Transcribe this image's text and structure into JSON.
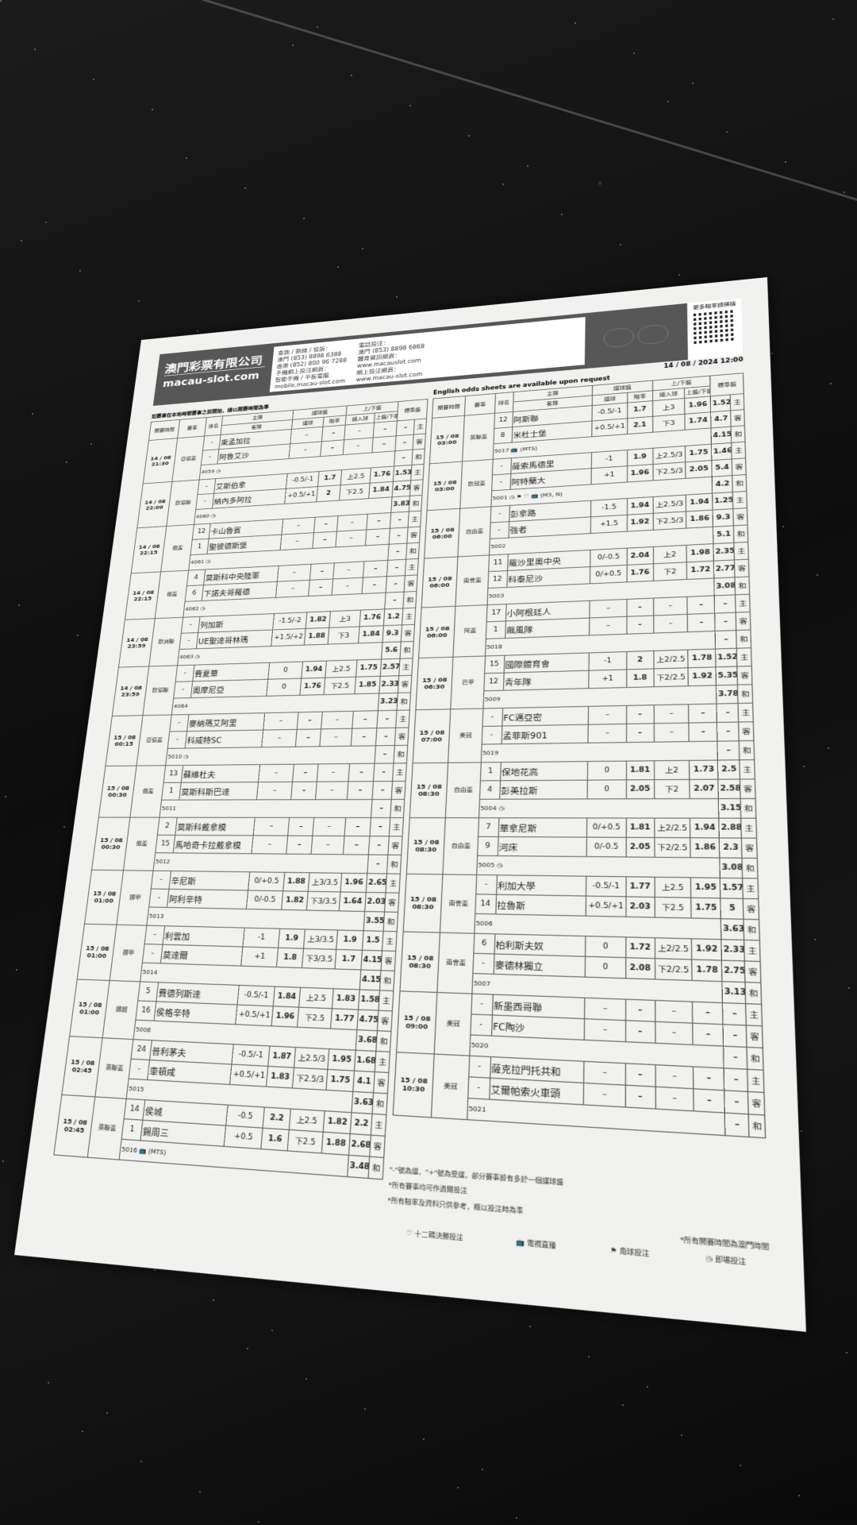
{
  "header": {
    "company_cn": "澳門彩票有限公司",
    "company_en": "macau-slot.com",
    "hotline_label": "查詢 / 熱線 / 投訴：",
    "hotline_macau": "澳門 (853) 8898 6388",
    "hotline_hk": "香港 (852) 800 96 7288",
    "mobile_label": "手機網上投注網頁：",
    "mobile_sub": "智能手機 / 平板電腦",
    "mobile_url": "mobile.macau-slot.com",
    "phone_bet_label": "電話投注：",
    "phone_bet": "澳門 (853) 8898 6868",
    "info_label": "體育資訊網頁：",
    "info_url": "www.macauslot.com",
    "online_label": "網上投注網頁：",
    "online_url": "www.macau-slot.com",
    "qr_label": "更多賠率請掃描",
    "date": "14 / 08 / 2024 12:00",
    "english_note": "English odds sheets are available upon request",
    "sub_note": "如賽事在本地時間賽事之前開始，請以開賽時間為準"
  },
  "columns": {
    "time": "開賽時間",
    "league": "賽事",
    "rank": "排名",
    "home": "主隊",
    "away": "客隊",
    "hdp": "讓球盤",
    "hdp_line": "讓球",
    "odds": "賠率",
    "ou": "上/下盤",
    "goals": "總入球",
    "ou_sub": "上盤/下盤",
    "std": "標準盤"
  },
  "result_labels": [
    "主",
    "客",
    "和"
  ],
  "left": [
    {
      "time": "14 / 08 21:30",
      "league": "亞協盃",
      "home": [
        "-",
        "東孟加拉",
        "–",
        "–",
        "–",
        "–",
        "–"
      ],
      "away": [
        "-",
        "阿魯艾沙",
        "–",
        "–",
        "–",
        "–",
        "–"
      ],
      "draw": "–",
      "id": "4059",
      "icons": [
        "clock-icon"
      ]
    },
    {
      "time": "14 / 08 22:00",
      "league": "歐協聯",
      "home": [
        "-",
        "艾斯伯拿",
        "-0.5/-1",
        "1.7",
        "上2.5",
        "1.76",
        "1.53"
      ],
      "away": [
        "-",
        "納內多阿拉",
        "+0.5/+1",
        "2",
        "下2.5",
        "1.84",
        "4.75"
      ],
      "draw": "3.83",
      "id": "4060",
      "icons": [
        "clock-icon"
      ]
    },
    {
      "time": "14 / 08 22:15",
      "league": "俄盃",
      "home": [
        "12",
        "卡山魯賓",
        "–",
        "–",
        "–",
        "–",
        "–"
      ],
      "away": [
        "1",
        "聖彼德斯堡",
        "–",
        "–",
        "–",
        "–",
        "–"
      ],
      "draw": "–",
      "id": "4061",
      "icons": [
        "clock-icon"
      ]
    },
    {
      "time": "14 / 08 22:15",
      "league": "俄盃",
      "home": [
        "4",
        "莫斯科中央陸軍",
        "–",
        "–",
        "–",
        "–",
        "–"
      ],
      "away": [
        "6",
        "下諾夫哥羅德",
        "–",
        "–",
        "–",
        "–",
        "–"
      ],
      "draw": "–",
      "id": "4062",
      "icons": [
        "clock-icon"
      ]
    },
    {
      "time": "14 / 08 23:59",
      "league": "歐洲聯",
      "home": [
        "-",
        "列加斯",
        "-1.5/-2",
        "1.82",
        "上3",
        "1.76",
        "1.2"
      ],
      "away": [
        "-",
        "UE聖達哥林瑪",
        "+1.5/+2",
        "1.88",
        "下3",
        "1.84",
        "9.3"
      ],
      "draw": "5.6",
      "id": "4063",
      "icons": [
        "clock-icon"
      ]
    },
    {
      "time": "14 / 08 23:59",
      "league": "歐協聯",
      "home": [
        "-",
        "費夏華",
        "0",
        "1.94",
        "上2.5",
        "1.75",
        "2.57"
      ],
      "away": [
        "-",
        "奧摩尼亞",
        "0",
        "1.76",
        "下2.5",
        "1.85",
        "2.33"
      ],
      "draw": "3.23",
      "id": "4064",
      "icons": []
    },
    {
      "time": "15 / 08 00:15",
      "league": "亞協盃",
      "home": [
        "-",
        "麥納瑪艾阿里",
        "–",
        "–",
        "–",
        "–",
        "–"
      ],
      "away": [
        "-",
        "科威特SC",
        "–",
        "–",
        "–",
        "–",
        "–"
      ],
      "draw": "–",
      "id": "5010",
      "icons": [
        "clock-icon"
      ]
    },
    {
      "time": "15 / 08 00:30",
      "league": "俄盃",
      "home": [
        "13",
        "蘇維杜夫",
        "–",
        "–",
        "–",
        "–",
        "–"
      ],
      "away": [
        "1",
        "莫斯科斯巴達",
        "–",
        "–",
        "–",
        "–",
        "–"
      ],
      "draw": "–",
      "id": "5011",
      "icons": []
    },
    {
      "time": "15 / 08 00:30",
      "league": "俄盃",
      "home": [
        "2",
        "莫斯科戴拿模",
        "–",
        "–",
        "–",
        "–",
        "–"
      ],
      "away": [
        "15",
        "馬哈奇卡拉戴拿模",
        "–",
        "–",
        "–",
        "–",
        "–"
      ],
      "draw": "–",
      "id": "5012",
      "icons": []
    },
    {
      "time": "15 / 08 01:00",
      "league": "挪甲",
      "home": [
        "-",
        "辛尼斯",
        "0/+0.5",
        "1.88",
        "上3/3.5",
        "1.96",
        "2.65"
      ],
      "away": [
        "-",
        "阿利辛特",
        "0/-0.5",
        "1.82",
        "下3/3.5",
        "1.64",
        "2.03"
      ],
      "draw": "3.55",
      "id": "5013",
      "icons": []
    },
    {
      "time": "15 / 08 01:00",
      "league": "挪甲",
      "home": [
        "-",
        "利雲加",
        "-1",
        "1.9",
        "上3/3.5",
        "1.9",
        "1.5"
      ],
      "away": [
        "-",
        "莫達爾",
        "+1",
        "1.8",
        "下3/3.5",
        "1.7",
        "4.15"
      ],
      "draw": "4.15",
      "id": "5014",
      "icons": []
    },
    {
      "time": "15 / 08 01:00",
      "league": "挪超",
      "home": [
        "5",
        "費德列斯達",
        "-0.5/-1",
        "1.84",
        "上2.5",
        "1.83",
        "1.58"
      ],
      "away": [
        "16",
        "侯格辛特",
        "+0.5/+1",
        "1.96",
        "下2.5",
        "1.77",
        "4.75"
      ],
      "draw": "3.68",
      "id": "5008",
      "icons": []
    },
    {
      "time": "15 / 08 02:45",
      "league": "英聯盃",
      "home": [
        "24",
        "普利茅夫",
        "-0.5/-1",
        "1.87",
        "上2.5/3",
        "1.95",
        "1.68"
      ],
      "away": [
        "-",
        "車頓咸",
        "+0.5/+1",
        "1.83",
        "下2.5/3",
        "1.75",
        "4.1"
      ],
      "draw": "3.63",
      "id": "5015",
      "icons": []
    },
    {
      "time": "15 / 08 02:45",
      "league": "英聯盃",
      "home": [
        "14",
        "侯城",
        "-0.5",
        "2.2",
        "上2.5",
        "1.82",
        "2.2"
      ],
      "away": [
        "1",
        "錫周三",
        "+0.5",
        "1.6",
        "下2.5",
        "1.88",
        "2.68"
      ],
      "draw": "3.48",
      "id": "5016",
      "icons": [
        "tv-icon"
      ],
      "tv": "(MTS)"
    }
  ],
  "right": [
    {
      "time": "15 / 08 03:00",
      "league": "英聯盃",
      "home": [
        "12",
        "阿斯聯",
        "-0.5/-1",
        "1.7",
        "上3",
        "1.96",
        "1.52"
      ],
      "away": [
        "8",
        "米杜士堡",
        "+0.5/+1",
        "2.1",
        "下3",
        "1.74",
        "4.7"
      ],
      "draw": "4.15",
      "id": "5017",
      "icons": [
        "tv-icon"
      ],
      "tv": "(MTS)"
    },
    {
      "time": "15 / 08 03:00",
      "league": "歐冠盃",
      "home": [
        "-",
        "薩索馬德里",
        "-1",
        "1.9",
        "上2.5/3",
        "1.75",
        "1.46"
      ],
      "away": [
        "-",
        "阿特蘭大",
        "+1",
        "1.96",
        "下2.5/3",
        "2.05",
        "5.4"
      ],
      "draw": "4.2",
      "id": "5001",
      "icons": [
        "clock-icon",
        "corner-flag-icon",
        "heart-icon",
        "tv-icon"
      ],
      "tv": "(M3, N)"
    },
    {
      "time": "15 / 08 06:00",
      "league": "自由盃",
      "home": [
        "-",
        "彭拿路",
        "-1.5",
        "1.94",
        "上2.5/3",
        "1.94",
        "1.25"
      ],
      "away": [
        "-",
        "強者",
        "+1.5",
        "1.92",
        "下2.5/3",
        "1.86",
        "9.3"
      ],
      "draw": "5.1",
      "id": "5002",
      "icons": []
    },
    {
      "time": "15 / 08 06:00",
      "league": "南會盃",
      "home": [
        "11",
        "羅沙里奧中央",
        "0/-0.5",
        "2.04",
        "上2",
        "1.98",
        "2.35"
      ],
      "away": [
        "12",
        "科泰尼沙",
        "0/+0.5",
        "1.76",
        "下2",
        "1.72",
        "2.77"
      ],
      "draw": "3.08",
      "id": "5003",
      "icons": []
    },
    {
      "time": "15 / 08 06:00",
      "league": "阿盃",
      "home": [
        "17",
        "小阿根廷人",
        "–",
        "–",
        "–",
        "–",
        "–"
      ],
      "away": [
        "1",
        "飆風隊",
        "–",
        "–",
        "–",
        "–",
        "–"
      ],
      "draw": "–",
      "id": "5018",
      "icons": []
    },
    {
      "time": "15 / 08 06:30",
      "league": "巴甲",
      "home": [
        "15",
        "國際體育會",
        "-1",
        "2",
        "上2/2.5",
        "1.78",
        "1.52"
      ],
      "away": [
        "12",
        "青年隊",
        "+1",
        "1.8",
        "下2/2.5",
        "1.92",
        "5.35"
      ],
      "draw": "3.78",
      "id": "5009",
      "icons": []
    },
    {
      "time": "15 / 08 07:00",
      "league": "美冠",
      "home": [
        "-",
        "FC邁亞密",
        "–",
        "–",
        "–",
        "–",
        "–"
      ],
      "away": [
        "-",
        "孟菲斯901",
        "–",
        "–",
        "–",
        "–",
        "–"
      ],
      "draw": "–",
      "id": "5019",
      "icons": []
    },
    {
      "time": "15 / 08 08:30",
      "league": "自由盃",
      "home": [
        "1",
        "保地花高",
        "0",
        "1.81",
        "上2",
        "1.73",
        "2.5"
      ],
      "away": [
        "4",
        "彭美拉斯",
        "0",
        "2.05",
        "下2",
        "2.07",
        "2.58"
      ],
      "draw": "3.15",
      "id": "5004",
      "icons": [
        "clock-icon"
      ]
    },
    {
      "time": "15 / 08 08:30",
      "league": "自由盃",
      "home": [
        "7",
        "華拿尼斯",
        "0/+0.5",
        "1.81",
        "上2/2.5",
        "1.94",
        "2.88"
      ],
      "away": [
        "9",
        "河床",
        "0/-0.5",
        "2.05",
        "下2/2.5",
        "1.86",
        "2.3"
      ],
      "draw": "3.08",
      "id": "5005",
      "icons": [
        "clock-icon"
      ]
    },
    {
      "time": "15 / 08 08:30",
      "league": "南會盃",
      "home": [
        "-",
        "利加大學",
        "-0.5/-1",
        "1.77",
        "上2.5",
        "1.95",
        "1.57"
      ],
      "away": [
        "14",
        "拉魯斯",
        "+0.5/+1",
        "2.03",
        "下2.5",
        "1.75",
        "5"
      ],
      "draw": "3.63",
      "id": "5006",
      "icons": []
    },
    {
      "time": "15 / 08 08:30",
      "league": "南會盃",
      "home": [
        "6",
        "柏利斯夫奴",
        "0",
        "1.72",
        "上2/2.5",
        "1.92",
        "2.33"
      ],
      "away": [
        "-",
        "麥德林獨立",
        "0",
        "2.08",
        "下2/2.5",
        "1.78",
        "2.75"
      ],
      "draw": "3.13",
      "id": "5007",
      "icons": []
    },
    {
      "time": "15 / 08 09:00",
      "league": "美冠",
      "home": [
        "-",
        "新墨西哥聯",
        "–",
        "–",
        "–",
        "–",
        "–"
      ],
      "away": [
        "-",
        "FC陶沙",
        "–",
        "–",
        "–",
        "–",
        "–"
      ],
      "draw": "–",
      "id": "5020",
      "icons": []
    },
    {
      "time": "15 / 08 10:30",
      "league": "美冠",
      "home": [
        "-",
        "薩克拉門托共和",
        "–",
        "–",
        "–",
        "–",
        "–"
      ],
      "away": [
        "-",
        "艾爾帕索火車頭",
        "–",
        "–",
        "–",
        "–",
        "–"
      ],
      "draw": "–",
      "id": "5021",
      "icons": []
    }
  ],
  "notes": {
    "line1": "\"-\"號為讓，\"+\"號為受讓，部分賽事設有多於一個讓球盤",
    "line2": "*所有賽事均可作過關投注",
    "line3": "*所有賠率及資料只供參考，概以投注時為準",
    "line4": "*所有開賽時間為澳門時間",
    "legend": [
      {
        "icon": "heart-icon",
        "label": "十二碼決勝投注"
      },
      {
        "icon": "tv-icon",
        "label": "電視直播"
      },
      {
        "icon": "corner-flag-icon",
        "label": "角球投注"
      },
      {
        "icon": "clock-icon",
        "label": "即場投注"
      }
    ]
  }
}
